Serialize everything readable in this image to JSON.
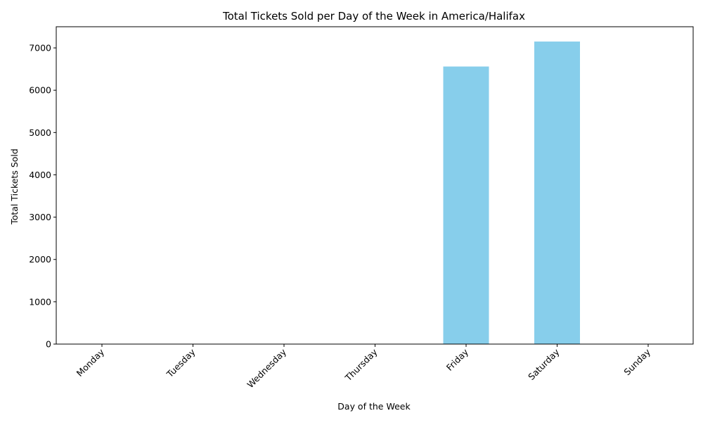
{
  "chart_data": {
    "type": "bar",
    "title": "Total Tickets Sold per Day of the Week in America/Halifax",
    "xlabel": "Day of the Week",
    "ylabel": "Total Tickets Sold",
    "categories": [
      "Monday",
      "Tuesday",
      "Wednesday",
      "Thursday",
      "Friday",
      "Saturday",
      "Sunday"
    ],
    "values": [
      0,
      0,
      0,
      0,
      6560,
      7150,
      0
    ],
    "ylim": [
      0,
      7500
    ],
    "yticks": [
      0,
      1000,
      2000,
      3000,
      4000,
      5000,
      6000,
      7000
    ],
    "bar_color": "#87ceeb",
    "grid": false,
    "legend": "none"
  }
}
